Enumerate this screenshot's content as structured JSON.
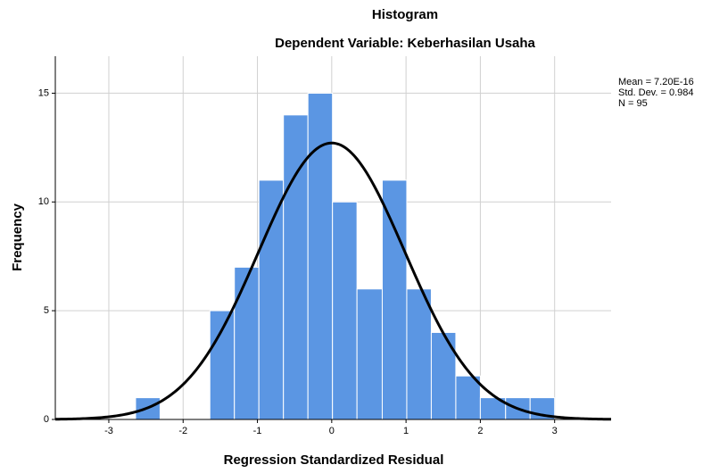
{
  "chart_data": {
    "type": "histogram",
    "title": "Histogram",
    "subtitle": "Dependent Variable: Keberhasilan  Usaha",
    "x_label": "Regression Standardized Residual",
    "y_label": "Frequency",
    "bins": [
      -2.64,
      -2.31,
      -1.98,
      -1.64,
      -1.31,
      -0.98,
      -0.65,
      -0.32,
      0.01,
      0.34,
      0.68,
      1.01,
      1.34,
      1.67,
      2.0,
      2.34,
      2.67,
      3.0
    ],
    "values": [
      1,
      0,
      0,
      5,
      7,
      11,
      14,
      15,
      10,
      6,
      11,
      6,
      4,
      2,
      1,
      1,
      1
    ],
    "color": "#5b96e3",
    "curve_color": "#000000",
    "stats": [
      {
        "value": 7.2e-16,
        "label": "Mean = 7.20E-16"
      },
      {
        "value": 0.984,
        "label": "Std. Dev. = 0.984"
      },
      {
        "value": 95,
        "label": "N = 95"
      }
    ],
    "xlim": [
      -3.72,
      3.76
    ],
    "ylim": [
      0,
      16.7
    ],
    "xticks": [
      -3,
      -2,
      -1,
      0,
      1,
      2,
      3
    ],
    "yticks": [
      0,
      5,
      10,
      15
    ],
    "grid": true
  }
}
